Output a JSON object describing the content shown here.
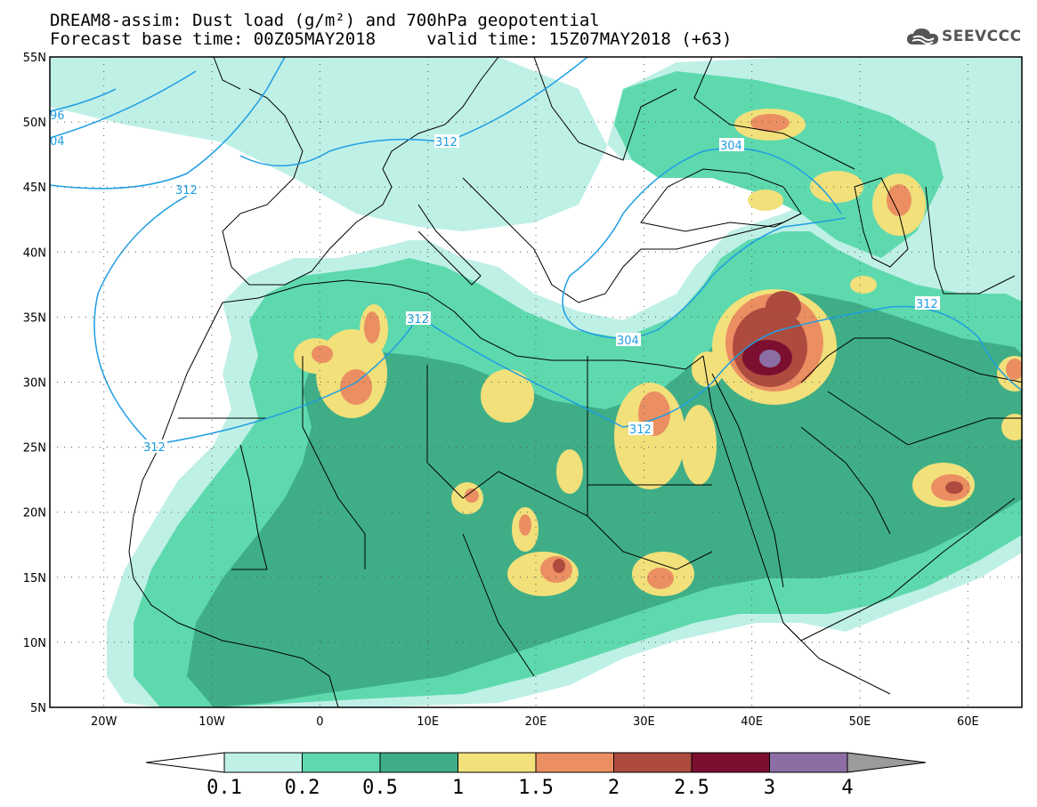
{
  "title": {
    "line1": "DREAM8-assim: Dust load (g/m²) and 700hPa geopotential",
    "line2": "Forecast base time: 00Z05MAY2018     valid time: 15Z07MAY2018 (+63)"
  },
  "logo": {
    "text": "SEEVCCC",
    "icon": "cloud-icon"
  },
  "axes": {
    "lon_ticks": [
      "20W",
      "10W",
      "0",
      "10E",
      "20E",
      "30E",
      "40E",
      "50E",
      "60E"
    ],
    "lat_ticks": [
      "55N",
      "50N",
      "45N",
      "40N",
      "35N",
      "30N",
      "25N",
      "20N",
      "15N",
      "10N",
      "5N"
    ],
    "lon_range": [
      -25,
      65
    ],
    "lat_range": [
      5,
      55
    ]
  },
  "contour_labels": [
    "96",
    "04",
    "312",
    "312",
    "304",
    "312",
    "304",
    "312",
    "312",
    "312"
  ],
  "colorbar": {
    "levels": [
      "0.1",
      "0.2",
      "0.5",
      "1",
      "1.5",
      "2",
      "2.5",
      "3",
      "4"
    ],
    "colors": [
      "#bff0e6",
      "#5ed9ae",
      "#3fae87",
      "#f2e07a",
      "#eb8f63",
      "#ad4b3e",
      "#7c0e30",
      "#8c6ea5",
      "#9b9b9b"
    ]
  },
  "colors": {
    "land_outline": "#000000",
    "geopotential": "#1f9ee3"
  }
}
